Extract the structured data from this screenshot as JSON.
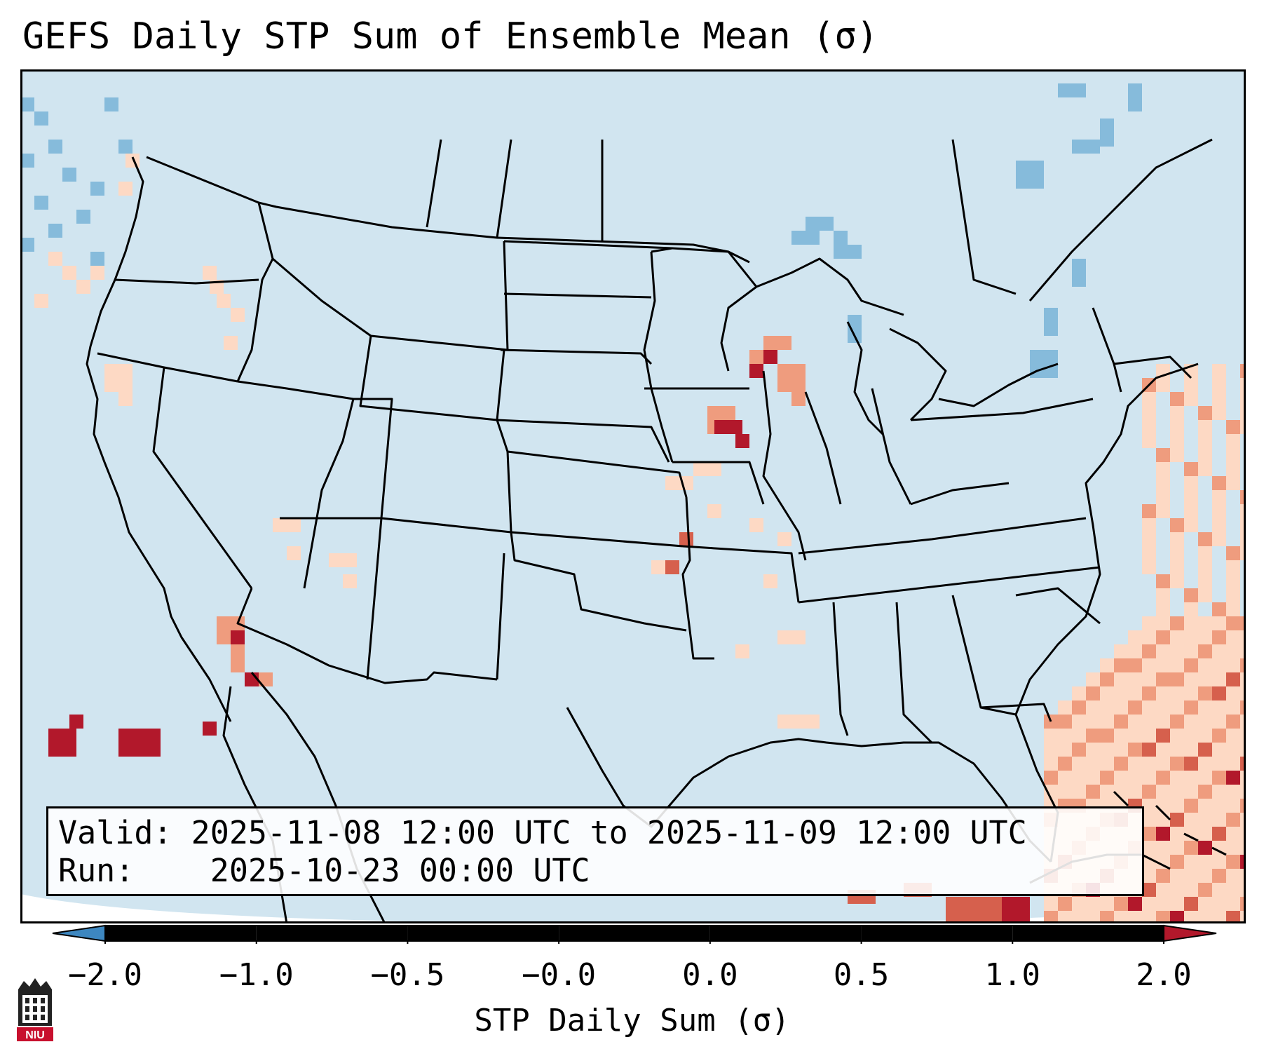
{
  "title": "GEFS Daily STP Sum of Ensemble Mean (σ)",
  "info": {
    "valid_label": "Valid:",
    "valid_text": "2025-11-08 12:00 UTC to 2025-11-09 12:00 UTC",
    "run_label": "Run:",
    "run_text": "2025-10-23 00:00 UTC"
  },
  "colorbar": {
    "label": "STP Daily Sum (σ)",
    "ticks": [
      "−2.0",
      "−1.0",
      "−0.5",
      "−0.0",
      "0.0",
      "0.5",
      "1.0",
      "2.0"
    ],
    "colors": [
      "#3d87c0",
      "#86bbdb",
      "#d1e5f0",
      "#f7f7f7",
      "#fdd9c4",
      "#ef9c7e",
      "#d6604d",
      "#b2182b"
    ],
    "extend": "both"
  },
  "map": {
    "projection": "Lambert Conformal, CONUS",
    "background_color": "#d1e5f0",
    "features": [
      "state boundaries",
      "coastlines",
      "country borders"
    ]
  },
  "logo": {
    "text": "NIU"
  }
}
